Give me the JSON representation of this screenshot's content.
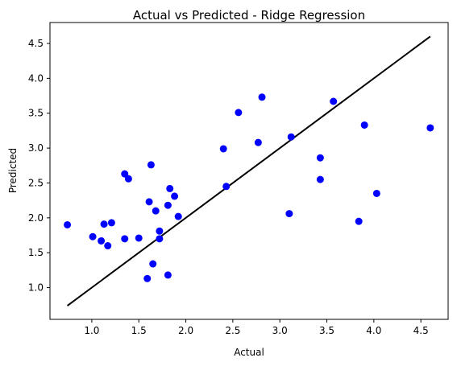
{
  "chart_data": {
    "type": "scatter",
    "title": "Actual vs Predicted - Ridge Regression",
    "xlabel": "Actual",
    "ylabel": "Predicted",
    "xlim": [
      0.555,
      4.79
    ],
    "ylim": [
      0.545,
      4.8
    ],
    "xticks": [
      1.0,
      1.5,
      2.0,
      2.5,
      3.0,
      3.5,
      4.0,
      4.5
    ],
    "xtick_labels": [
      "1.0",
      "1.5",
      "2.0",
      "2.5",
      "3.0",
      "3.5",
      "4.0",
      "4.5"
    ],
    "yticks": [
      1.0,
      1.5,
      2.0,
      2.5,
      3.0,
      3.5,
      4.0,
      4.5
    ],
    "ytick_labels": [
      "1.0",
      "1.5",
      "2.0",
      "2.5",
      "3.0",
      "3.5",
      "4.0",
      "4.5"
    ],
    "grid": false,
    "point_color": "#0000ff",
    "line_color": "#000000",
    "fit_line": {
      "x": [
        0.74,
        4.6
      ],
      "y": [
        0.74,
        4.6
      ]
    },
    "points": [
      {
        "x": 0.74,
        "y": 1.9
      },
      {
        "x": 1.01,
        "y": 1.73
      },
      {
        "x": 1.1,
        "y": 1.67
      },
      {
        "x": 1.13,
        "y": 1.91
      },
      {
        "x": 1.17,
        "y": 1.6
      },
      {
        "x": 1.21,
        "y": 1.93
      },
      {
        "x": 1.35,
        "y": 2.63
      },
      {
        "x": 1.35,
        "y": 1.7
      },
      {
        "x": 1.39,
        "y": 2.56
      },
      {
        "x": 1.5,
        "y": 1.71
      },
      {
        "x": 1.59,
        "y": 1.13
      },
      {
        "x": 1.61,
        "y": 2.23
      },
      {
        "x": 1.63,
        "y": 2.76
      },
      {
        "x": 1.65,
        "y": 1.34
      },
      {
        "x": 1.68,
        "y": 2.1
      },
      {
        "x": 1.72,
        "y": 1.81
      },
      {
        "x": 1.72,
        "y": 1.7
      },
      {
        "x": 1.81,
        "y": 2.18
      },
      {
        "x": 1.81,
        "y": 1.18
      },
      {
        "x": 1.83,
        "y": 2.42
      },
      {
        "x": 1.88,
        "y": 2.31
      },
      {
        "x": 1.92,
        "y": 2.02
      },
      {
        "x": 2.4,
        "y": 2.99
      },
      {
        "x": 2.43,
        "y": 2.45
      },
      {
        "x": 2.56,
        "y": 3.51
      },
      {
        "x": 2.77,
        "y": 3.08
      },
      {
        "x": 2.81,
        "y": 3.73
      },
      {
        "x": 3.1,
        "y": 2.06
      },
      {
        "x": 3.12,
        "y": 3.16
      },
      {
        "x": 3.43,
        "y": 2.86
      },
      {
        "x": 3.43,
        "y": 2.55
      },
      {
        "x": 3.57,
        "y": 3.67
      },
      {
        "x": 3.84,
        "y": 1.95
      },
      {
        "x": 3.9,
        "y": 3.33
      },
      {
        "x": 4.03,
        "y": 2.35
      },
      {
        "x": 4.6,
        "y": 3.29
      }
    ]
  }
}
